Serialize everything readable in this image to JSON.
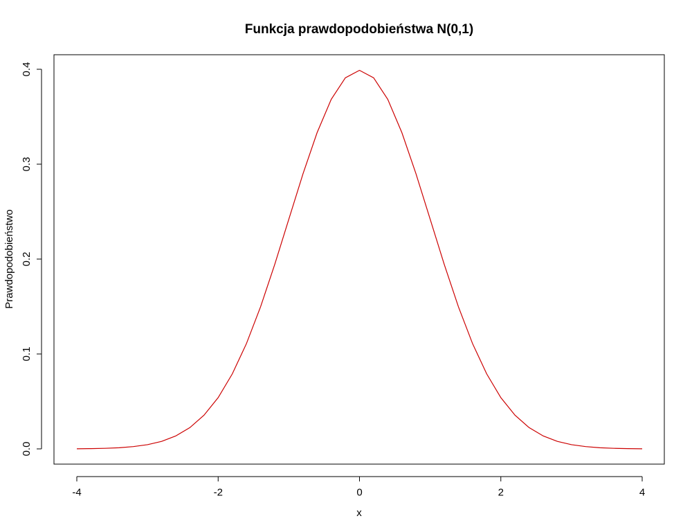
{
  "chart_data": {
    "type": "line",
    "title": "Funkcja prawdopodobieństwa N(0,1)",
    "xlabel": "x",
    "ylabel": "Prawdopodobieństwo",
    "xlim": [
      -4,
      4
    ],
    "ylim": [
      0,
      0.4
    ],
    "x_ticks": [
      -4,
      -2,
      0,
      2,
      4
    ],
    "x_tick_labels": [
      "-4",
      "-2",
      "0",
      "2",
      "4"
    ],
    "y_ticks": [
      0,
      0.1,
      0.2,
      0.3,
      0.4
    ],
    "y_tick_labels": [
      "0.0",
      "0.1",
      "0.2",
      "0.3",
      "0.4"
    ],
    "grid": false,
    "series": [
      {
        "color": "#cc0000",
        "x": [
          -4.0,
          -3.8,
          -3.6,
          -3.4,
          -3.2,
          -3.0,
          -2.8,
          -2.6,
          -2.4,
          -2.2,
          -2.0,
          -1.8,
          -1.6,
          -1.4,
          -1.2,
          -1.0,
          -0.8,
          -0.6,
          -0.4,
          -0.2,
          0.0,
          0.2,
          0.4,
          0.6,
          0.8,
          1.0,
          1.2,
          1.4,
          1.6,
          1.8,
          2.0,
          2.2,
          2.4,
          2.6,
          2.8,
          3.0,
          3.2,
          3.4,
          3.6,
          3.8,
          4.0
        ],
        "y": [
          0.0001,
          0.0003,
          0.0006,
          0.0012,
          0.0024,
          0.0044,
          0.0079,
          0.0136,
          0.0224,
          0.0355,
          0.054,
          0.079,
          0.1109,
          0.1497,
          0.1942,
          0.242,
          0.2897,
          0.3332,
          0.3683,
          0.391,
          0.3989,
          0.391,
          0.3683,
          0.3332,
          0.2897,
          0.242,
          0.1942,
          0.1497,
          0.1109,
          0.079,
          0.054,
          0.0355,
          0.0224,
          0.0136,
          0.0079,
          0.0044,
          0.0024,
          0.0012,
          0.0006,
          0.0003,
          0.0001
        ]
      }
    ]
  }
}
